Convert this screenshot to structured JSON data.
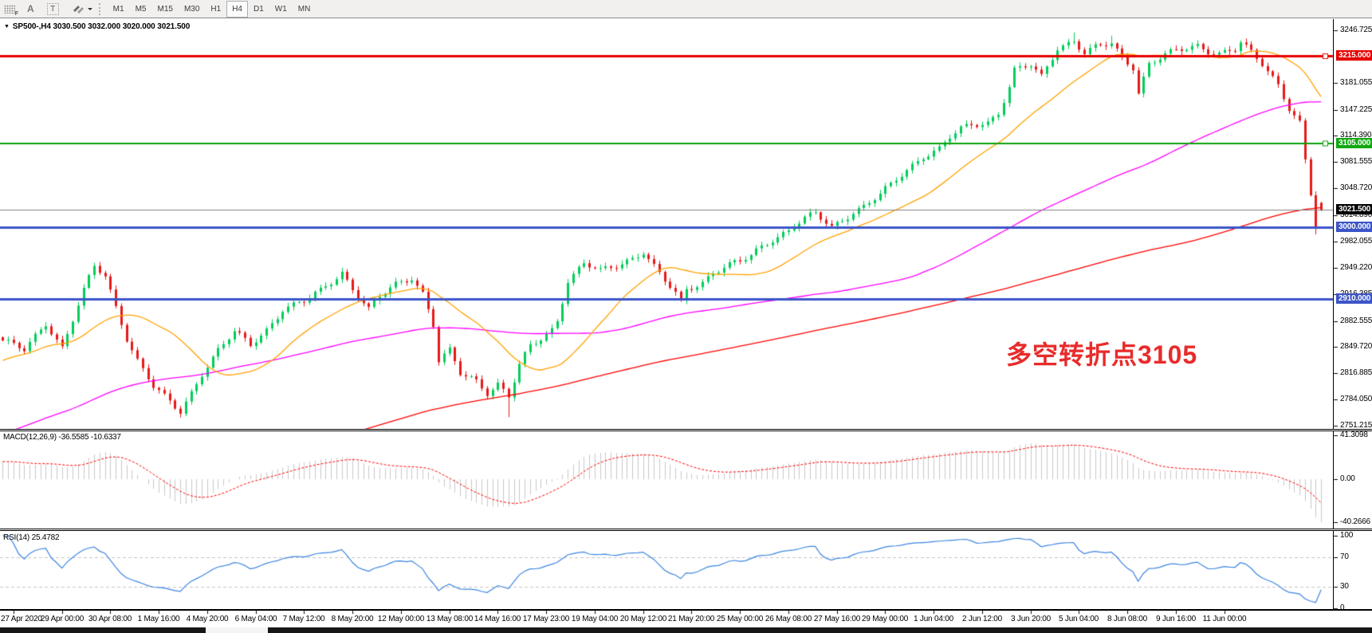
{
  "toolbar": {
    "icon_f": "F",
    "icon_a": "A",
    "icon_t": "T",
    "timeframes": [
      "M1",
      "M5",
      "M15",
      "M30",
      "H1",
      "H4",
      "D1",
      "W1",
      "MN"
    ],
    "active_timeframe": "H4"
  },
  "chart": {
    "title_line": "SP500-,H4 3030.500 3032.000 3020.000 3021.500",
    "symbol": "SP500-",
    "period": "H4",
    "open": "3030.500",
    "high": "3032.000",
    "low": "3020.000",
    "close": "3021.500",
    "annotation": {
      "text": "多空转折点3105",
      "color": "#e82b2b"
    }
  },
  "indicators": {
    "macd_label": "MACD(12,26,9) -36.5585 -10.6337",
    "rsi_label": "RSI(14) 25.4782"
  },
  "chart_data": {
    "type": "candlestick",
    "symbol": "SP500-",
    "timeframe": "H4",
    "candle_up_color": "#00cd5a",
    "candle_down_color": "#e61919",
    "num_candles": 246,
    "visible_ohlc_last": {
      "open": 3030.5,
      "high": 3032.0,
      "low": 3020.0,
      "close": 3021.5
    },
    "close_path_keypoints": [
      [
        0,
        2858
      ],
      [
        4,
        2845
      ],
      [
        8,
        2880
      ],
      [
        11,
        2850
      ],
      [
        15,
        2920
      ],
      [
        17,
        2950
      ],
      [
        19,
        2938
      ],
      [
        21,
        2900
      ],
      [
        23,
        2862
      ],
      [
        25,
        2834
      ],
      [
        28,
        2800
      ],
      [
        30,
        2786
      ],
      [
        33,
        2768
      ],
      [
        37,
        2818
      ],
      [
        40,
        2846
      ],
      [
        43,
        2868
      ],
      [
        46,
        2852
      ],
      [
        49,
        2872
      ],
      [
        52,
        2898
      ],
      [
        56,
        2906
      ],
      [
        59,
        2920
      ],
      [
        61,
        2932
      ],
      [
        63,
        2944
      ],
      [
        66,
        2914
      ],
      [
        68,
        2896
      ],
      [
        70,
        2912
      ],
      [
        73,
        2928
      ],
      [
        76,
        2938
      ],
      [
        78,
        2918
      ],
      [
        80,
        2878
      ],
      [
        81,
        2832
      ],
      [
        83,
        2844
      ],
      [
        85,
        2816
      ],
      [
        88,
        2808
      ],
      [
        90,
        2794
      ],
      [
        92,
        2804
      ],
      [
        94,
        2788
      ],
      [
        96,
        2826
      ],
      [
        98,
        2850
      ],
      [
        100,
        2860
      ],
      [
        102,
        2872
      ],
      [
        103,
        2884
      ],
      [
        105,
        2934
      ],
      [
        108,
        2954
      ],
      [
        111,
        2944
      ],
      [
        114,
        2952
      ],
      [
        117,
        2962
      ],
      [
        119,
        2970
      ],
      [
        121,
        2950
      ],
      [
        123,
        2932
      ],
      [
        125,
        2916
      ],
      [
        126,
        2904
      ],
      [
        127,
        2922
      ],
      [
        130,
        2932
      ],
      [
        132,
        2944
      ],
      [
        134,
        2950
      ],
      [
        137,
        2956
      ],
      [
        139,
        2964
      ],
      [
        141,
        2976
      ],
      [
        143,
        2986
      ],
      [
        146,
        2996
      ],
      [
        147,
        3002
      ],
      [
        149,
        3010
      ],
      [
        151,
        3016
      ],
      [
        154,
        3000
      ],
      [
        156,
        3010
      ],
      [
        158,
        3020
      ],
      [
        160,
        3026
      ],
      [
        163,
        3040
      ],
      [
        165,
        3052
      ],
      [
        167,
        3066
      ],
      [
        169,
        3078
      ],
      [
        171,
        3090
      ],
      [
        174,
        3098
      ],
      [
        176,
        3112
      ],
      [
        178,
        3122
      ],
      [
        180,
        3128
      ],
      [
        183,
        3132
      ],
      [
        185,
        3144
      ],
      [
        187,
        3176
      ],
      [
        188,
        3196
      ],
      [
        191,
        3202
      ],
      [
        193,
        3188
      ],
      [
        196,
        3226
      ],
      [
        199,
        3234
      ],
      [
        201,
        3218
      ],
      [
        203,
        3224
      ],
      [
        206,
        3230
      ],
      [
        208,
        3212
      ],
      [
        210,
        3202
      ],
      [
        211,
        3170
      ],
      [
        213,
        3205
      ],
      [
        216,
        3215
      ],
      [
        219,
        3222
      ],
      [
        222,
        3228
      ],
      [
        224,
        3222
      ],
      [
        226,
        3218
      ],
      [
        229,
        3222
      ],
      [
        230,
        3230
      ],
      [
        232,
        3218
      ],
      [
        234,
        3205
      ],
      [
        237,
        3180
      ],
      [
        239,
        3150
      ],
      [
        241,
        3130
      ],
      [
        242,
        3085
      ],
      [
        243,
        3040
      ],
      [
        244,
        3000
      ],
      [
        245,
        3021.5
      ]
    ],
    "wick_extremes": [
      {
        "index": 94,
        "low": 2762
      },
      {
        "index": 199,
        "high": 3244
      },
      {
        "index": 206,
        "high": 3240
      },
      {
        "index": 244,
        "low": 2991
      }
    ],
    "moving_averages": [
      {
        "name": "ma-slow",
        "period": 200,
        "color": "#ff0000"
      },
      {
        "name": "ma-medium",
        "period": 90,
        "color": "#ff00ff"
      },
      {
        "name": "ma-fast",
        "period": 20,
        "color": "#ffa200"
      }
    ],
    "y_axis": {
      "top_price": 3259.7,
      "bottom_price": 2747.2,
      "ticks": [
        "3246.725",
        "3181.055",
        "3147.225",
        "3114.390",
        "3081.555",
        "3048.720",
        "3014.890",
        "2982.055",
        "2949.220",
        "2916.385",
        "2882.555",
        "2849.720",
        "2816.885",
        "2784.050",
        "2751.215"
      ]
    },
    "hlines": [
      {
        "price": 3215.0,
        "label": "3215.000",
        "line_color": "#e60000",
        "badge_color": "#e60000",
        "thickness": 3,
        "handle": true
      },
      {
        "price": 3105.0,
        "label": "3105.000",
        "line_color": "#0aa00a",
        "badge_color": "#12a812",
        "thickness": 2,
        "handle": true
      },
      {
        "price": 3021.5,
        "label": "3021.500",
        "line_color": "#808080",
        "badge_color": "#000000",
        "thickness": 1,
        "handle": false
      },
      {
        "price": 3000.0,
        "label": "3000.000",
        "line_color": "#3c55c8",
        "badge_color": "#3c55c8",
        "thickness": 3,
        "handle": false
      },
      {
        "price": 2910.0,
        "label": "2910.000",
        "line_color": "#3c55c8",
        "badge_color": "#3c55c8",
        "thickness": 3,
        "handle": false
      }
    ],
    "macd": {
      "params": [
        12,
        26,
        9
      ],
      "current_macd": -36.5585,
      "current_signal": -10.6337,
      "axis_ticks": [
        "41.3098",
        "0.00",
        "-40.2666"
      ],
      "histogram_color": "#c8c8c8",
      "signal_color": "#ff0000"
    },
    "rsi": {
      "period": 14,
      "current": 25.4782,
      "axis_ticks": [
        "100",
        "70",
        "30",
        "0"
      ],
      "levels": [
        30,
        70
      ],
      "color": "#3d85e0"
    },
    "x_labels": [
      "27 Apr 2020",
      "29 Apr 00:00",
      "30 Apr 08:00",
      "1 May 16:00",
      "4 May 20:00",
      "6 May 04:00",
      "7 May 12:00",
      "8 May 20:00",
      "12 May 00:00",
      "13 May 08:00",
      "14 May 16:00",
      "17 May 23:00",
      "19 May 04:00",
      "20 May 12:00",
      "21 May 20:00",
      "25 May 00:00",
      "26 May 08:00",
      "27 May 16:00",
      "29 May 00:00",
      "1 Jun 04:00",
      "2 Jun 12:00",
      "3 Jun 20:00",
      "5 Jun 04:00",
      "8 Jun 08:00",
      "9 Jun 16:00",
      "11 Jun 00:00"
    ]
  }
}
